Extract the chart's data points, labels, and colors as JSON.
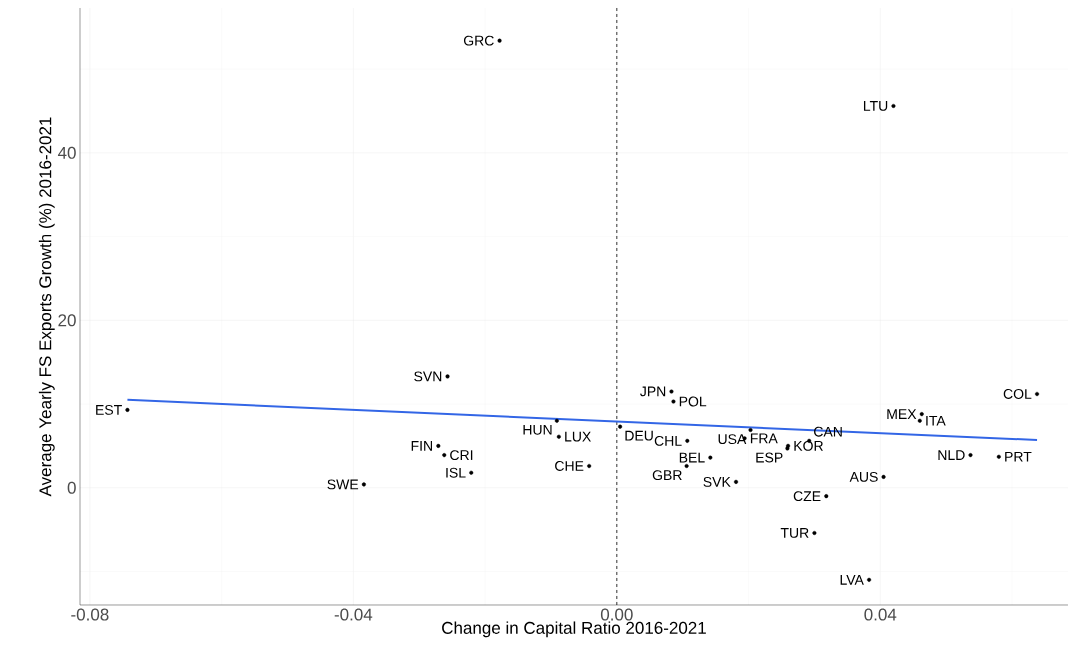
{
  "chart_data": {
    "type": "scatter",
    "xlabel": "Change in Capital Ratio 2016-2021",
    "ylabel": "Average Yearly FS Exports Growth (%) 2016-2021",
    "xlim": [
      -0.0815,
      0.0685
    ],
    "ylim": [
      -14,
      57.3
    ],
    "xticks": [
      {
        "value": -0.08,
        "label": "-0.08"
      },
      {
        "value": -0.04,
        "label": "-0.04"
      },
      {
        "value": 0,
        "label": "0.00"
      },
      {
        "value": 0.04,
        "label": "0.04"
      }
    ],
    "yticks": [
      0,
      20,
      40
    ],
    "grid": true,
    "ref_lines": [
      {
        "axis": "x",
        "value": 0,
        "color": "#000000",
        "line_style": "dashed"
      }
    ],
    "series": [
      {
        "type": "scatter",
        "marker": "circle",
        "color": "#000000",
        "x": [
          -0.0178,
          0.042,
          -0.0257,
          -0.0743,
          0.0083,
          0.0086,
          0.0638,
          -0.0091,
          -0.0088,
          0.0005,
          0.0463,
          0.046,
          0.0203,
          0.0194,
          0.026,
          0.0292,
          0.0259,
          0.0107,
          0.0142,
          0.0106,
          0.0181,
          0.0318,
          0.0405,
          0.03,
          0.0383,
          0.0537,
          0.058,
          -0.0271,
          -0.0262,
          -0.0221,
          -0.0384,
          -0.0042
        ],
        "values": [
          53.4,
          45.6,
          13.3,
          9.3,
          11.5,
          10.3,
          11.2,
          8.0,
          6.1,
          7.3,
          8.8,
          8.0,
          6.9,
          5.9,
          5.0,
          5.6,
          4.7,
          5.6,
          3.6,
          2.6,
          0.7,
          -1.0,
          1.3,
          -5.4,
          -11.0,
          3.9,
          3.7,
          5.0,
          3.9,
          1.8,
          0.4,
          2.6
        ]
      },
      {
        "type": "line",
        "color": "#3366e6",
        "marker": "none",
        "x": [
          -0.0743,
          0.0638
        ],
        "values": [
          10.5,
          5.7
        ]
      }
    ],
    "annotations": [
      {
        "text": "GRC",
        "x": -0.0178,
        "y": 53.4
      },
      {
        "text": "LTU",
        "x": 0.042,
        "y": 45.6
      },
      {
        "text": "SVN",
        "x": -0.0257,
        "y": 13.3
      },
      {
        "text": "EST",
        "x": -0.0743,
        "y": 9.3
      },
      {
        "text": "JPN",
        "x": 0.0083,
        "y": 11.5
      },
      {
        "text": "POL",
        "x": 0.0086,
        "y": 10.3
      },
      {
        "text": "COL",
        "x": 0.0638,
        "y": 11.2
      },
      {
        "text": "HUN",
        "x": -0.0091,
        "y": 8.0
      },
      {
        "text": "LUX",
        "x": -0.0088,
        "y": 6.1
      },
      {
        "text": "DEU",
        "x": 0.0005,
        "y": 7.3
      },
      {
        "text": "MEX",
        "x": 0.0463,
        "y": 8.8
      },
      {
        "text": "ITA",
        "x": 0.046,
        "y": 8.0
      },
      {
        "text": "USA",
        "x": 0.0203,
        "y": 6.9
      },
      {
        "text": "FRA",
        "x": 0.0194,
        "y": 5.9
      },
      {
        "text": "KOR",
        "x": 0.026,
        "y": 5.0
      },
      {
        "text": "CAN",
        "x": 0.0292,
        "y": 5.6
      },
      {
        "text": "ESP",
        "x": 0.0259,
        "y": 4.7
      },
      {
        "text": "CHL",
        "x": 0.0107,
        "y": 5.6
      },
      {
        "text": "BEL",
        "x": 0.0142,
        "y": 3.6
      },
      {
        "text": "GBR",
        "x": 0.0106,
        "y": 2.6
      },
      {
        "text": "SVK",
        "x": 0.0181,
        "y": 0.7
      },
      {
        "text": "CZE",
        "x": 0.0318,
        "y": -1.0
      },
      {
        "text": "AUS",
        "x": 0.0405,
        "y": 1.3
      },
      {
        "text": "TUR",
        "x": 0.03,
        "y": -5.4
      },
      {
        "text": "LVA",
        "x": 0.0383,
        "y": -11.0
      },
      {
        "text": "NLD",
        "x": 0.0537,
        "y": 3.9
      },
      {
        "text": "PRT",
        "x": 0.058,
        "y": 3.7
      },
      {
        "text": "FIN",
        "x": -0.0271,
        "y": 5.0
      },
      {
        "text": "CRI",
        "x": -0.0262,
        "y": 3.9
      },
      {
        "text": "ISL",
        "x": -0.0221,
        "y": 1.8
      },
      {
        "text": "SWE",
        "x": -0.0384,
        "y": 0.4
      },
      {
        "text": "CHE",
        "x": -0.0042,
        "y": 2.6
      }
    ]
  }
}
